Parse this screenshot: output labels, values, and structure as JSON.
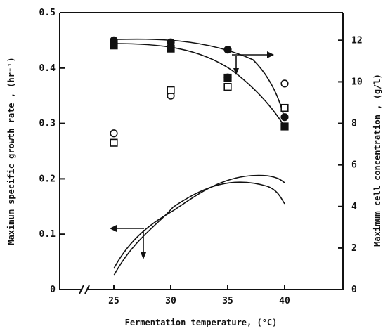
{
  "chart_data": {
    "type": "scatter",
    "x": [
      25,
      30,
      35,
      40
    ],
    "xlabel": "Fermentation temperature, (°C)",
    "xlim": [
      20,
      45
    ],
    "xticks": [
      "25",
      "30",
      "35",
      "40"
    ],
    "left_axis": {
      "label": "Maximum specific growth rate , (hr⁻¹)",
      "ylim": [
        0,
        0.5
      ],
      "ticks": [
        "0",
        "0.1",
        "0.2",
        "0.3",
        "0.4",
        "0.5"
      ]
    },
    "right_axis": {
      "label": "Maximum cell concentration , (g/l)",
      "ylim": [
        0,
        13.33
      ],
      "ticks": [
        "0",
        "2",
        "4",
        "6",
        "8",
        "10",
        "12"
      ]
    },
    "series": [
      {
        "marker": "open-circle",
        "axis": "left",
        "values": [
          0.282,
          0.35,
          0.383,
          0.372
        ]
      },
      {
        "marker": "open-square",
        "axis": "left",
        "values": [
          0.265,
          0.36,
          0.366,
          0.328
        ]
      },
      {
        "marker": "filled-circle",
        "axis": "right",
        "values": [
          12.0,
          11.9,
          11.55,
          8.3
        ]
      },
      {
        "marker": "filled-square",
        "axis": "right",
        "values": [
          11.75,
          11.6,
          10.2,
          7.85
        ]
      }
    ],
    "axis_break": "x",
    "grid": false
  }
}
